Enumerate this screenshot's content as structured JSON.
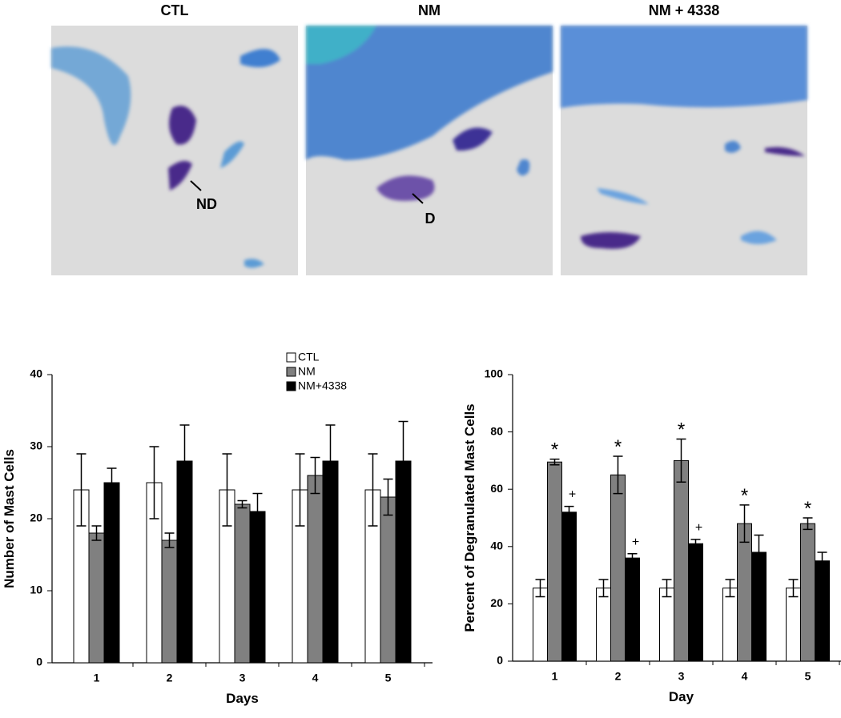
{
  "panels": [
    {
      "title": "CTL",
      "annotation": "ND"
    },
    {
      "title": "NM",
      "annotation": "D"
    },
    {
      "title": "NM + 4338"
    }
  ],
  "chart_data": [
    {
      "type": "bar",
      "ylabel": "Number of Mast Cells",
      "xlabel": "Days",
      "categories": [
        "1",
        "2",
        "3",
        "4",
        "5"
      ],
      "ylim": [
        0,
        40
      ],
      "yticks": [
        0,
        10,
        20,
        30,
        40
      ],
      "legend": "top-right",
      "series": [
        {
          "name": "CTL",
          "color": "#ffffff",
          "values": [
            24,
            25,
            24,
            24,
            24
          ],
          "errors": [
            5,
            5,
            5,
            5,
            5
          ]
        },
        {
          "name": "NM",
          "color": "#808080",
          "values": [
            18,
            17,
            22,
            26,
            23
          ],
          "errors": [
            1,
            1,
            0.5,
            2.5,
            2.5
          ]
        },
        {
          "name": "NM+4338",
          "color": "#000000",
          "values": [
            25,
            28,
            21,
            28,
            28
          ],
          "errors": [
            2,
            5,
            2.5,
            5,
            5.5
          ]
        }
      ]
    },
    {
      "type": "bar",
      "ylabel": "Percent of Degranulated Mast Cells",
      "xlabel": "Day",
      "categories": [
        "1",
        "2",
        "3",
        "4",
        "5"
      ],
      "ylim": [
        0,
        100
      ],
      "yticks": [
        0,
        20,
        40,
        60,
        80,
        100
      ],
      "series": [
        {
          "color": "#ffffff",
          "values": [
            25.5,
            25.5,
            25.5,
            25.5,
            25.5
          ],
          "errors": [
            3,
            3,
            3,
            3,
            3
          ]
        },
        {
          "color": "#808080",
          "values": [
            69.5,
            65,
            70,
            48,
            48
          ],
          "errors": [
            1,
            6.5,
            7.5,
            6.5,
            2
          ],
          "value_annotations": [
            "*",
            "*",
            "*",
            "*",
            "*"
          ]
        },
        {
          "color": "#000000",
          "values": [
            52,
            36,
            41,
            38,
            35
          ],
          "errors": [
            2,
            1.5,
            1.5,
            6,
            3
          ],
          "value_annotations": [
            "+",
            "+",
            "+",
            null,
            null
          ]
        }
      ]
    }
  ]
}
